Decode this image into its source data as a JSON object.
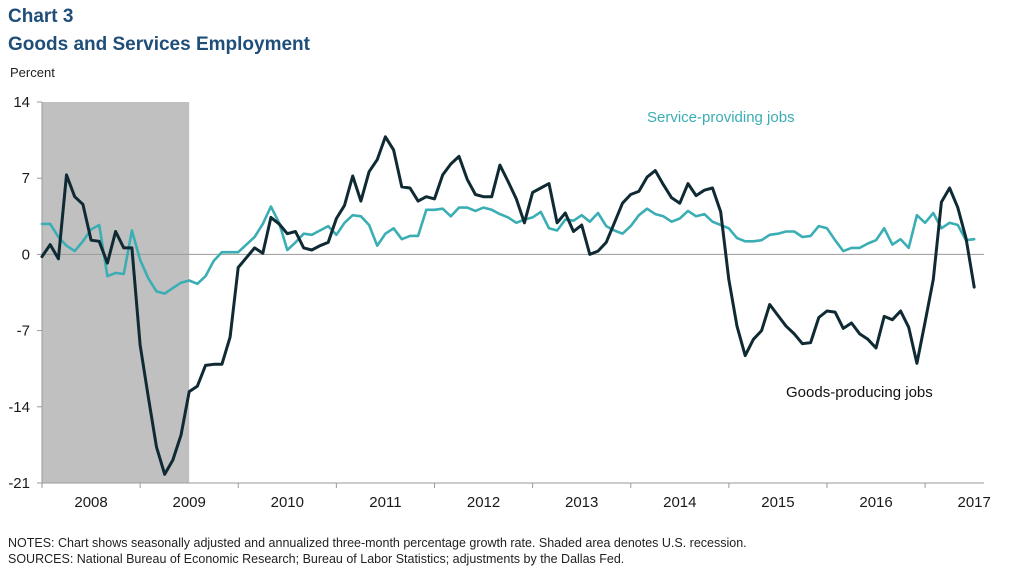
{
  "header": {
    "chart_number": "Chart 3",
    "title": "Goods and Services Employment",
    "unit": "Percent"
  },
  "footer": {
    "notes": "NOTES:  Chart shows seasonally adjusted and annualized three-month percentage growth rate. Shaded area denotes U.S.  recession.",
    "sources": "SOURCES:  National Bureau of Economic  Research; Bureau of Labor Statistics;  adjustments by the Dallas Fed."
  },
  "colors": {
    "goods": "#0f2a33",
    "services": "#3aaeb4",
    "recession": "#c0c0c0",
    "title": "#1f4e79"
  },
  "chart_data": {
    "type": "line",
    "title": "Goods and Services Employment",
    "ylabel": "Percent",
    "ylim": [
      -21,
      14
    ],
    "yticks": [
      14,
      7,
      0,
      -7,
      -14,
      -21
    ],
    "xlim": [
      2008.0,
      2017.6
    ],
    "x_tick_labels": [
      "2008",
      "2009",
      "2010",
      "2011",
      "2012",
      "2013",
      "2014",
      "2015",
      "2016",
      "2017"
    ],
    "x_tick_positions": [
      2008.5,
      2009.5,
      2010.5,
      2011.5,
      2012.5,
      2013.5,
      2014.5,
      2015.5,
      2016.5,
      2017.5
    ],
    "recession": [
      2008.0,
      2009.5
    ],
    "annotations": [
      "Service-providing  jobs",
      "Goods-producing  jobs"
    ],
    "x_start": 2008.0,
    "x_step": 0.08333,
    "series": [
      {
        "name": "Goods-producing  jobs",
        "values": [
          -0.2,
          0.9,
          -0.4,
          7.3,
          5.3,
          4.6,
          1.3,
          1.2,
          -0.8,
          2.1,
          0.6,
          0.6,
          -8.3,
          -13.1,
          -17.7,
          -20.2,
          -18.9,
          -16.6,
          -12.6,
          -12.1,
          -10.2,
          -10.1,
          -10.1,
          -7.6,
          -1.2,
          -0.3,
          0.6,
          0.1,
          3.4,
          2.8,
          1.9,
          2.1,
          0.6,
          0.4,
          0.8,
          1.1,
          3.3,
          4.5,
          7.2,
          4.9,
          7.6,
          8.7,
          10.8,
          9.6,
          6.2,
          6.1,
          4.9,
          5.3,
          5.1,
          7.3,
          8.3,
          9.0,
          6.9,
          5.5,
          5.3,
          5.3,
          8.2,
          6.7,
          5.1,
          2.9,
          5.7,
          6.1,
          6.5,
          2.9,
          3.8,
          2.1,
          2.7,
          0.0,
          0.3,
          1.1,
          2.9,
          4.7,
          5.5,
          5.8,
          7.1,
          7.7,
          6.4,
          5.2,
          4.7,
          6.5,
          5.4,
          5.9,
          6.1,
          3.9,
          -2.3,
          -6.6,
          -9.3,
          -7.8,
          -7.0,
          -4.6,
          -5.6,
          -6.6,
          -7.3,
          -8.2,
          -8.1,
          -5.8,
          -5.2,
          -5.3,
          -6.8,
          -6.3,
          -7.3,
          -7.8,
          -8.6,
          -5.7,
          -6.0,
          -5.2,
          -6.7,
          -10.0,
          -6.2,
          -2.3,
          4.8,
          6.1,
          4.3,
          1.5,
          -3.0
        ]
      },
      {
        "name": "Service-providing  jobs",
        "values": [
          2.8,
          2.8,
          1.6,
          0.8,
          0.3,
          1.2,
          2.3,
          2.7,
          -2.0,
          -1.7,
          -1.8,
          2.2,
          -0.5,
          -2.2,
          -3.4,
          -3.6,
          -3.1,
          -2.6,
          -2.4,
          -2.7,
          -2.0,
          -0.6,
          0.2,
          0.2,
          0.2,
          0.9,
          1.6,
          2.8,
          4.4,
          2.9,
          0.4,
          1.1,
          1.9,
          1.8,
          2.2,
          2.6,
          1.8,
          2.9,
          3.6,
          3.5,
          2.7,
          0.8,
          1.9,
          2.4,
          1.4,
          1.7,
          1.7,
          4.1,
          4.1,
          4.2,
          3.5,
          4.3,
          4.3,
          4.0,
          4.3,
          4.1,
          3.7,
          3.4,
          2.9,
          3.2,
          3.4,
          3.9,
          2.4,
          2.2,
          3.2,
          3.1,
          3.6,
          3.0,
          3.8,
          2.6,
          2.2,
          1.9,
          2.6,
          3.6,
          4.2,
          3.7,
          3.5,
          3.0,
          3.3,
          4.0,
          3.5,
          3.7,
          3.0,
          2.7,
          2.4,
          1.5,
          1.2,
          1.2,
          1.3,
          1.8,
          1.9,
          2.1,
          2.1,
          1.6,
          1.7,
          2.6,
          2.4,
          1.3,
          0.3,
          0.6,
          0.6,
          1.0,
          1.3,
          2.4,
          0.9,
          1.4,
          0.6,
          3.6,
          2.9,
          3.8,
          2.4,
          2.9,
          2.7,
          1.3,
          1.4
        ]
      }
    ]
  }
}
